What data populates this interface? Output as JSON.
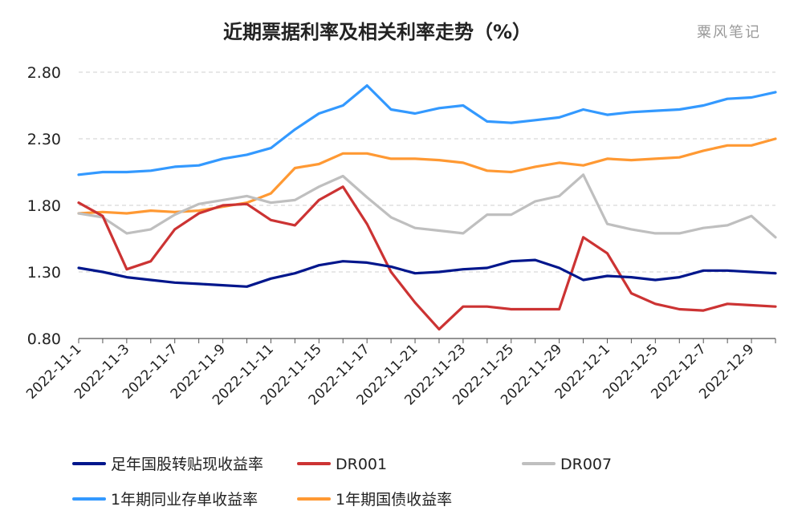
{
  "chart_data": {
    "type": "line",
    "title": "近期票据利率及相关利率走势（%）",
    "watermark": "粟风笔记",
    "xlabel": "",
    "ylabel": "",
    "ylim": [
      0.8,
      2.8
    ],
    "yticks": [
      "2.80",
      "2.30",
      "1.80",
      "1.30",
      "0.80"
    ],
    "ytick_values": [
      2.8,
      2.3,
      1.8,
      1.3,
      0.8
    ],
    "grid": true,
    "legend_position": "bottom",
    "x": [
      "2022-11-1",
      "2022-11-2",
      "2022-11-3",
      "2022-11-4",
      "2022-11-7",
      "2022-11-8",
      "2022-11-9",
      "2022-11-10",
      "2022-11-11",
      "2022-11-14",
      "2022-11-15",
      "2022-11-16",
      "2022-11-17",
      "2022-11-18",
      "2022-11-21",
      "2022-11-22",
      "2022-11-23",
      "2022-11-24",
      "2022-11-25",
      "2022-11-28",
      "2022-11-29",
      "2022-11-30",
      "2022-12-1",
      "2022-12-2",
      "2022-12-5",
      "2022-12-6",
      "2022-12-7",
      "2022-12-8",
      "2022-12-9",
      "2022-12-12"
    ],
    "xtick_labels": [
      "2022-11-1",
      "2022-11-3",
      "2022-11-7",
      "2022-11-9",
      "2022-11-11",
      "2022-11-15",
      "2022-11-17",
      "2022-11-21",
      "2022-11-23",
      "2022-11-25",
      "2022-11-29",
      "2022-12-1",
      "2022-12-5",
      "2022-12-7",
      "2022-12-9"
    ],
    "series": [
      {
        "name": "足年国股转贴现收益率",
        "color": "#00168c",
        "values": [
          1.33,
          1.3,
          1.26,
          1.24,
          1.22,
          1.21,
          1.2,
          1.19,
          1.25,
          1.29,
          1.35,
          1.38,
          1.37,
          1.34,
          1.29,
          1.3,
          1.32,
          1.33,
          1.38,
          1.39,
          1.33,
          1.24,
          1.27,
          1.26,
          1.24,
          1.26,
          1.31,
          1.31,
          1.3,
          1.29
        ]
      },
      {
        "name": "DR001",
        "color": "#cc3333",
        "values": [
          1.82,
          1.72,
          1.32,
          1.38,
          1.62,
          1.74,
          1.8,
          1.81,
          1.69,
          1.65,
          1.84,
          1.94,
          1.66,
          1.3,
          1.07,
          0.87,
          1.04,
          1.04,
          1.02,
          1.02,
          1.02,
          1.56,
          1.44,
          1.14,
          1.06,
          1.02,
          1.01,
          1.06,
          1.05,
          1.04
        ]
      },
      {
        "name": "DR007",
        "color": "#bfbfbf",
        "values": [
          1.74,
          1.71,
          1.59,
          1.62,
          1.73,
          1.81,
          1.84,
          1.87,
          1.82,
          1.84,
          1.94,
          2.02,
          1.86,
          1.71,
          1.63,
          1.61,
          1.59,
          1.73,
          1.73,
          1.83,
          1.87,
          2.03,
          1.66,
          1.62,
          1.59,
          1.59,
          1.63,
          1.65,
          1.72,
          1.56
        ]
      },
      {
        "name": "1年期同业存单收益率",
        "color": "#3399ff",
        "values": [
          2.03,
          2.05,
          2.05,
          2.06,
          2.09,
          2.1,
          2.15,
          2.18,
          2.23,
          2.37,
          2.49,
          2.55,
          2.7,
          2.52,
          2.49,
          2.53,
          2.55,
          2.43,
          2.42,
          2.44,
          2.46,
          2.52,
          2.48,
          2.5,
          2.51,
          2.52,
          2.55,
          2.6,
          2.61,
          2.65
        ]
      },
      {
        "name": "1年期国债收益率",
        "color": "#ff9933",
        "values": [
          1.74,
          1.75,
          1.74,
          1.76,
          1.75,
          1.76,
          1.79,
          1.82,
          1.89,
          2.08,
          2.11,
          2.19,
          2.19,
          2.15,
          2.15,
          2.14,
          2.12,
          2.06,
          2.05,
          2.09,
          2.12,
          2.1,
          2.15,
          2.14,
          2.15,
          2.16,
          2.21,
          2.25,
          2.25,
          2.3
        ]
      }
    ]
  }
}
